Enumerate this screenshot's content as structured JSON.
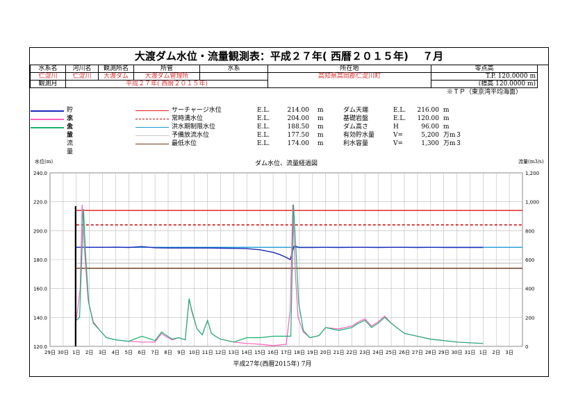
{
  "title": "大渡ダム水位・流量観測表：平成２７年( 西暦２０１５年)　 ７月",
  "info": {
    "headers": [
      "水系名",
      "河川名",
      "観測所名",
      "所管",
      "水系",
      "所在地",
      "零点高"
    ],
    "values": [
      "仁淀川",
      "仁淀川",
      "大渡ダム",
      "大渡ダム管理所",
      "",
      "高知県高岡郡仁淀川町"
    ],
    "zero_tp": "T.P. 120.0000 m",
    "zero_label": "(標高 120.0000 m)",
    "period_label": "観測月",
    "period_value": "平成２７年( 西暦２０１５年)",
    "tp_note": "※ＴＰ（東京湾平均海面）"
  },
  "series_legend": [
    {
      "label": "貯水位",
      "color": "#1a28b8"
    },
    {
      "label": "流入量",
      "color": "#ff5fc0"
    },
    {
      "label": "全放流量",
      "color": "#18b070"
    }
  ],
  "levels_legend": [
    {
      "label": "サーチャージ水位",
      "color": "#e01818",
      "dash": false,
      "prefix": "E.L.",
      "value": "214.00",
      "unit": "m"
    },
    {
      "label": "常時満水位",
      "color": "#cc0000",
      "dash": true,
      "prefix": "E.L.",
      "value": "204.00",
      "unit": "m"
    },
    {
      "label": "洪水期制限水位",
      "color": "#1e9bd7",
      "dash": false,
      "prefix": "E.L.",
      "value": "188.50",
      "unit": "m"
    },
    {
      "label": "予備放流水位",
      "color": "#c8c8c8",
      "dash": false,
      "prefix": "E.L.",
      "value": "177.50",
      "unit": "m"
    },
    {
      "label": "最低水位",
      "color": "#6b3a1e",
      "dash": false,
      "prefix": "E.L.",
      "value": "174.00",
      "unit": "m"
    }
  ],
  "dam_specs": [
    {
      "label": "ダム天端",
      "prefix": "E.L.",
      "value": "216.00",
      "unit": "m"
    },
    {
      "label": "基礎岩盤",
      "prefix": "E.L.",
      "value": "120.00",
      "unit": "m"
    },
    {
      "label": "ダム高さ",
      "prefix": "H",
      "value": "96.00",
      "unit": "m"
    },
    {
      "label": "有効貯水量",
      "prefix": "V=",
      "value": "5,200",
      "unit": "万m３"
    },
    {
      "label": "利水容量",
      "prefix": "V=",
      "value": "1,300",
      "unit": "万m３"
    }
  ],
  "chart_data": {
    "type": "line",
    "title": "ダム水位、流量経過図",
    "ylabel_left": "水位(m)",
    "ylabel_right": "流量(m3/s)",
    "xlabel": "平成27年(西暦2015年) 7月",
    "ylim_left": [
      120,
      240
    ],
    "ylim_right": [
      0,
      1200
    ],
    "yticks_left": [
      "120.0",
      "140.0",
      "160.0",
      "180.0",
      "200.0",
      "220.0",
      "240.0"
    ],
    "yticks_right": [
      "0",
      "200",
      "400",
      "600",
      "800",
      "1,000",
      "1,200"
    ],
    "x_tick_labels": [
      "29日",
      "30日",
      "1日",
      "2日",
      "3日",
      "4日",
      "5日",
      "6日",
      "7日",
      "8日",
      "9日",
      "10日",
      "11日",
      "12日",
      "13日",
      "14日",
      "15日",
      "16日",
      "17日",
      "18日",
      "19日",
      "20日",
      "21日",
      "22日",
      "23日",
      "24日",
      "25日",
      "26日",
      "27日",
      "28日",
      "29日",
      "30日",
      "31日",
      "1日",
      "2日",
      "3日"
    ],
    "grid": true,
    "levels": [
      214.0,
      204.0,
      188.5,
      177.5,
      174.0
    ],
    "series": [
      {
        "name": "貯水位",
        "axis": "left",
        "x": [
          1.0,
          2,
          3,
          4,
          5,
          6,
          7,
          8,
          9,
          10,
          11,
          12,
          13,
          14,
          15,
          16,
          16.5,
          17,
          17.3,
          17.6,
          18,
          19,
          20,
          21,
          22,
          23,
          24,
          25,
          26,
          27,
          28,
          29,
          30,
          31,
          32
        ],
        "values": [
          188.5,
          188.5,
          188.5,
          188.6,
          188.4,
          189.0,
          188.2,
          188.0,
          188.0,
          188.0,
          188.0,
          187.9,
          187.8,
          187.6,
          186.8,
          185.0,
          183.5,
          181.5,
          180.0,
          189.5,
          188.4,
          188.4,
          188.5,
          188.4,
          188.5,
          188.5,
          188.4,
          188.5,
          188.5,
          188.4,
          188.5,
          188.4,
          188.4,
          188.4,
          188.4
        ]
      },
      {
        "name": "流入量",
        "axis": "right",
        "x": [
          1.0,
          1.3,
          1.45,
          1.6,
          1.9,
          2.3,
          2.8,
          3.3,
          4.0,
          5.0,
          6.0,
          7.0,
          7.5,
          7.8,
          8.3,
          8.8,
          9.3,
          9.6,
          9.8,
          10.2,
          10.6,
          11.0,
          11.3,
          11.6,
          12.0,
          13.0,
          14.0,
          15.0,
          16.0,
          17.0,
          17.3,
          17.5,
          17.7,
          17.9,
          18.3,
          18.8,
          19.5,
          20.0,
          21.0,
          22.0,
          22.5,
          23.0,
          23.5,
          24.0,
          24.5,
          25.0,
          26.0,
          27.0,
          28.0,
          29.0,
          30.0,
          31.0,
          32.0
        ],
        "values": [
          180,
          400,
          980,
          700,
          320,
          170,
          110,
          60,
          45,
          35,
          30,
          30,
          90,
          70,
          45,
          60,
          45,
          330,
          240,
          120,
          80,
          180,
          90,
          70,
          50,
          30,
          20,
          15,
          5,
          15,
          250,
          980,
          500,
          200,
          100,
          60,
          75,
          130,
          120,
          140,
          170,
          190,
          140,
          170,
          210,
          160,
          90,
          70,
          50,
          40,
          30,
          25,
          20
        ]
      },
      {
        "name": "全放流量",
        "axis": "right",
        "x": [
          1.0,
          1.25,
          1.55,
          1.7,
          1.95,
          2.3,
          2.8,
          3.3,
          4.0,
          5.0,
          6.0,
          7.0,
          7.5,
          7.8,
          8.3,
          8.8,
          9.3,
          9.6,
          9.8,
          10.2,
          10.6,
          11.0,
          11.3,
          11.6,
          12.0,
          13.0,
          14.0,
          15.0,
          16.0,
          17.0,
          17.35,
          17.55,
          17.75,
          17.95,
          18.3,
          18.8,
          19.5,
          20.0,
          21.0,
          22.0,
          22.5,
          23.0,
          23.5,
          24.0,
          24.5,
          25.0,
          26.0,
          27.0,
          28.0,
          29.0,
          30.0,
          31.0,
          32.0
        ],
        "values": [
          180,
          200,
          950,
          650,
          300,
          160,
          110,
          60,
          45,
          35,
          70,
          40,
          100,
          80,
          50,
          60,
          45,
          330,
          250,
          120,
          80,
          180,
          90,
          70,
          50,
          30,
          60,
          60,
          70,
          70,
          70,
          980,
          650,
          300,
          110,
          60,
          75,
          130,
          110,
          130,
          160,
          180,
          130,
          160,
          200,
          160,
          90,
          70,
          50,
          40,
          30,
          25,
          20
        ]
      }
    ]
  }
}
